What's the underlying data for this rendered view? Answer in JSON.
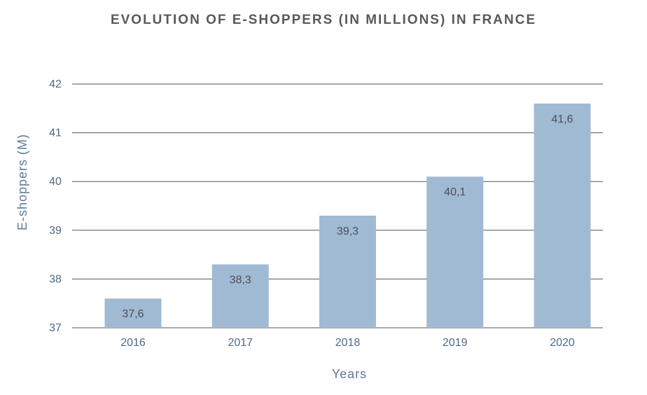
{
  "chart_data": {
    "type": "bar",
    "title": "EVOLUTION OF E-SHOPPERS (IN MILLIONS) IN FRANCE",
    "xlabel": "Years",
    "ylabel": "E-shoppers (M)",
    "categories": [
      "2016",
      "2017",
      "2018",
      "2019",
      "2020"
    ],
    "values": [
      37.6,
      38.3,
      39.3,
      40.1,
      41.6
    ],
    "data_labels": [
      "37,6",
      "38,3",
      "39,3",
      "40,1",
      "41,6"
    ],
    "ylim": [
      37,
      42
    ],
    "yticks": [
      37,
      38,
      39,
      40,
      41,
      42
    ],
    "ytick_labels": [
      "37",
      "38",
      "39",
      "40",
      "41",
      "42"
    ],
    "grid": true,
    "legend": "none",
    "colors": {
      "bar": "#a1bad4",
      "grid": "#555555",
      "title": "#555a5f",
      "axis_text": "#4e6a86"
    }
  }
}
